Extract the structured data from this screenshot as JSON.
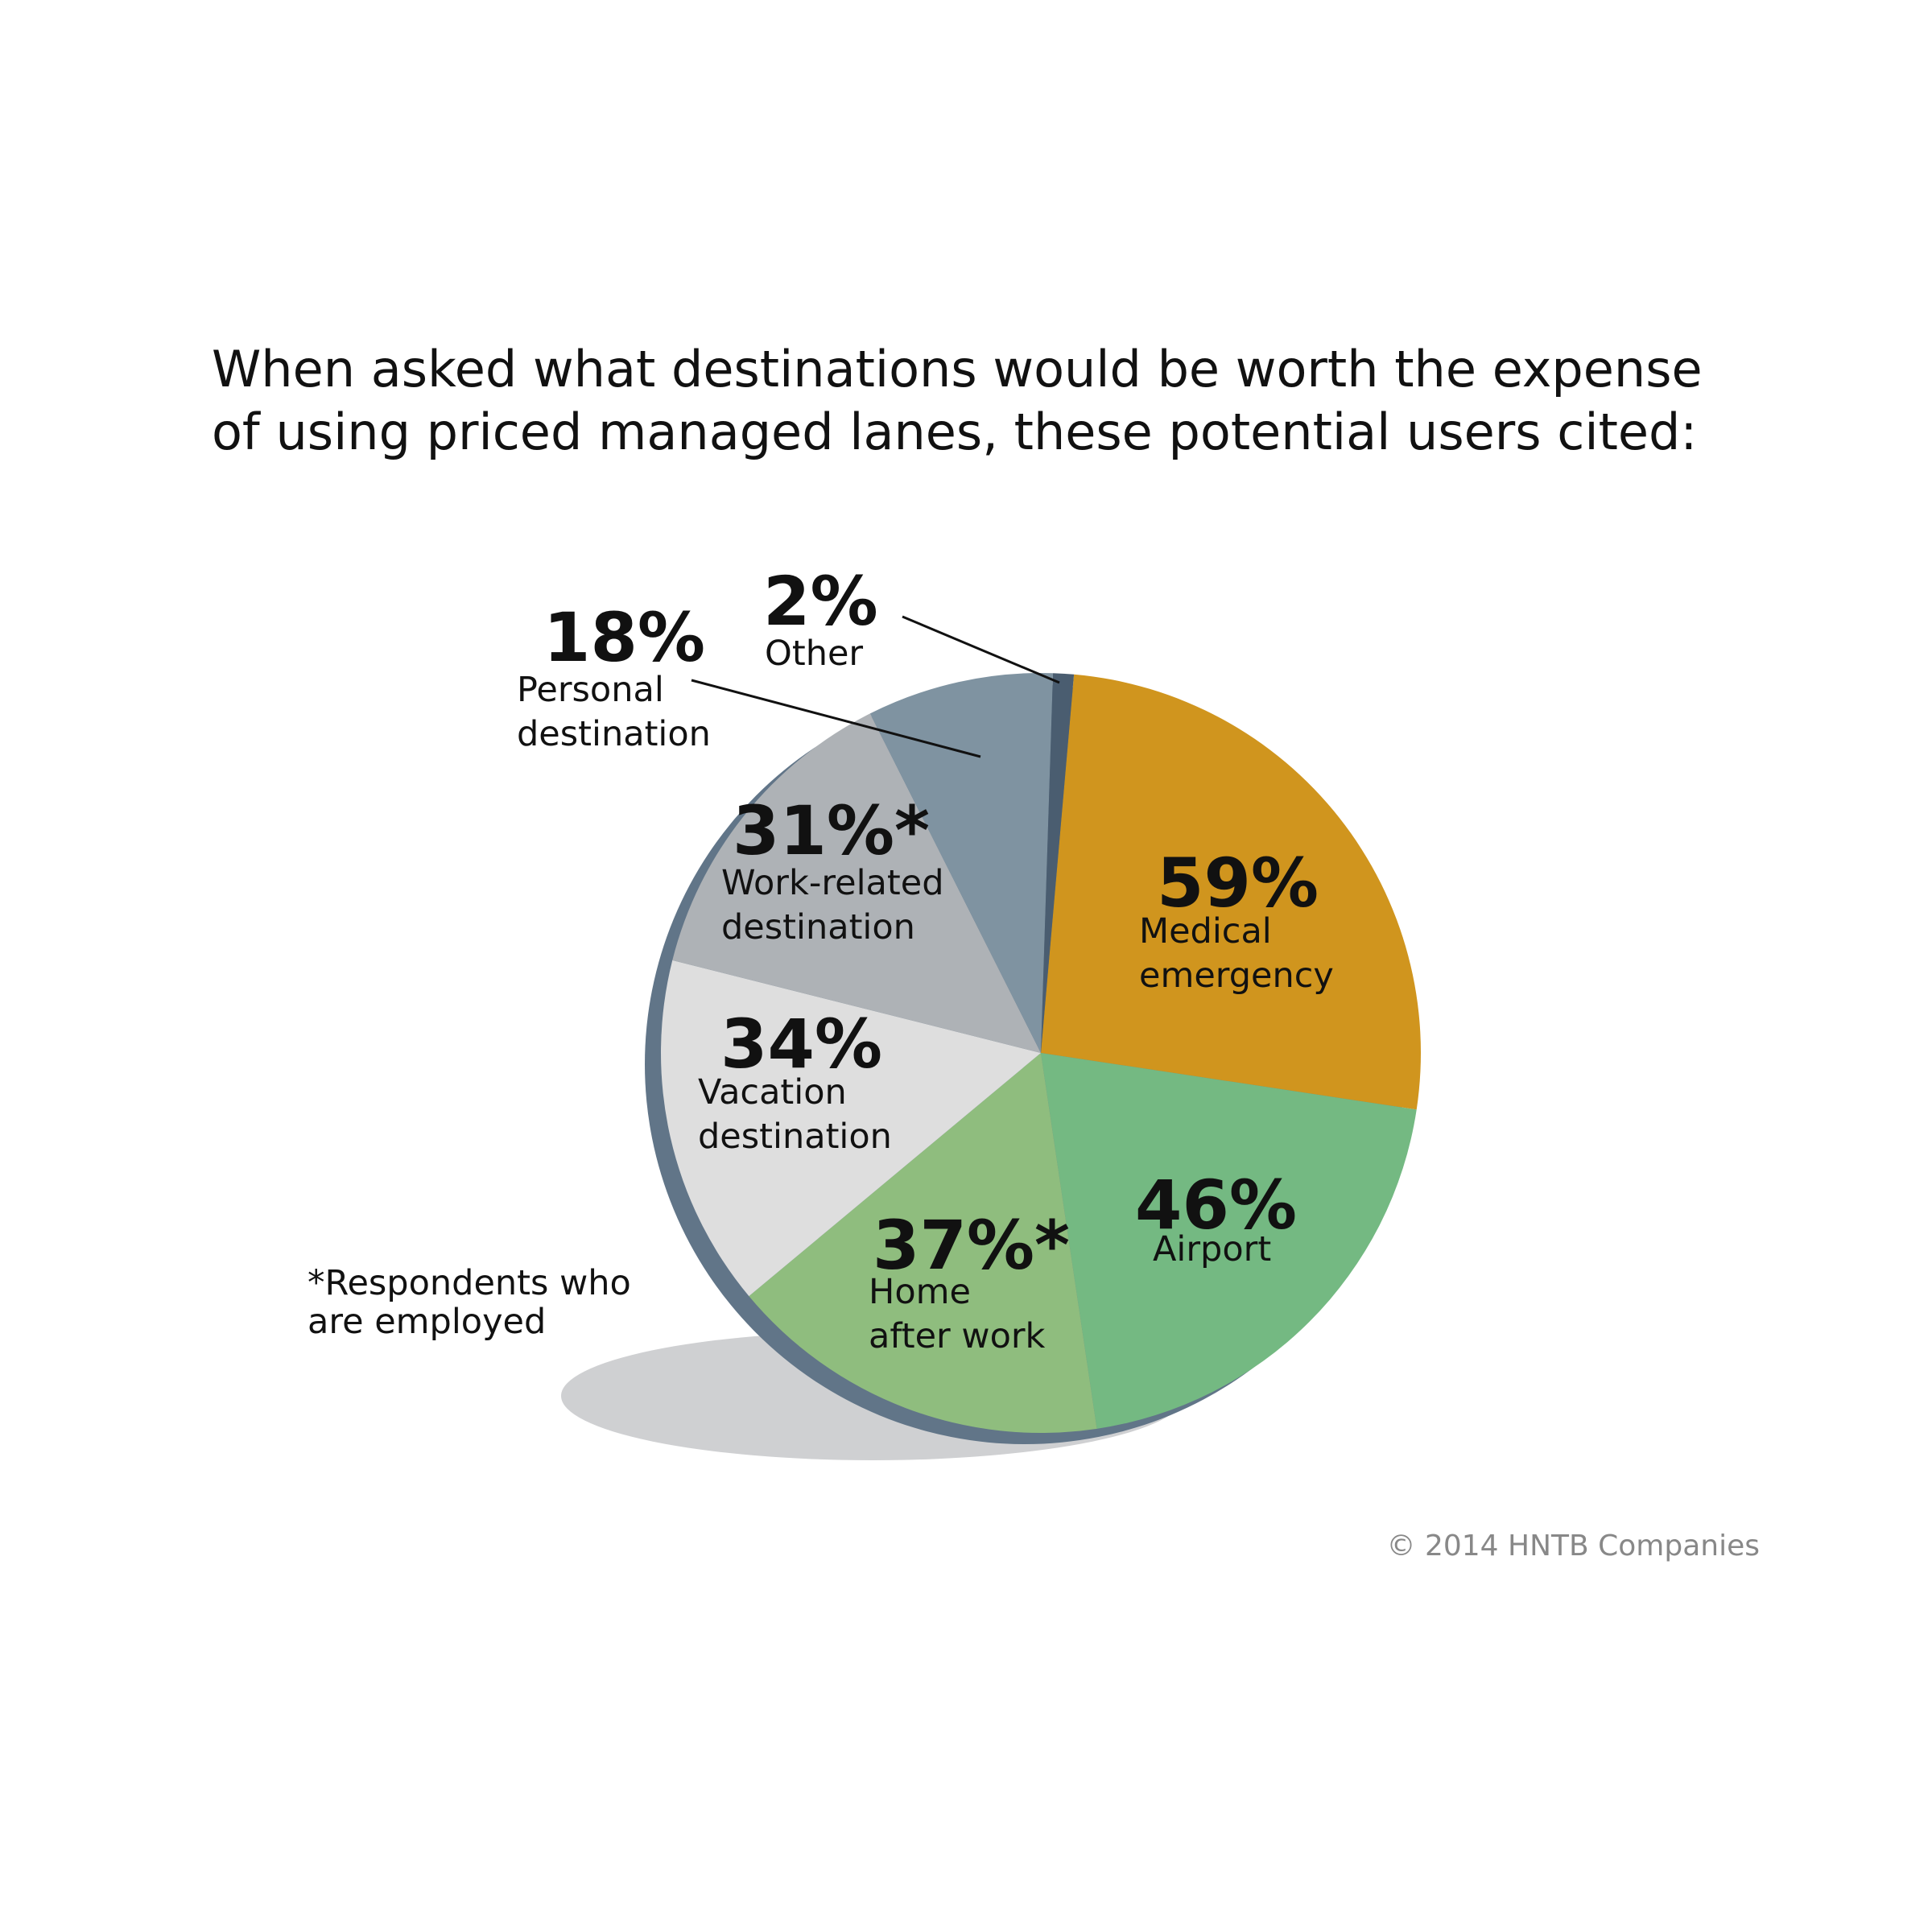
{
  "chart_data": {
    "type": "pie",
    "title": "When asked what destinations would be worth the expense\nof using priced managed lanes, these potential users cited:",
    "categories": [
      "Medical\nemergency",
      "Airport",
      "Home\nafter work",
      "Vacation\ndestination",
      "Work-related\ndestination",
      "Personal\ndestination",
      "Other"
    ],
    "values": [
      59,
      46,
      37,
      34,
      31,
      18,
      2
    ],
    "value_labels": [
      "59%",
      "46%",
      "37%*",
      "34%",
      "31%*",
      "18%",
      "2%"
    ],
    "colors": [
      "#d0951e",
      "#74b982",
      "#8fbd7e",
      "#dedede",
      "#aeb2b6",
      "#7f93a1",
      "#4a5d70"
    ],
    "footnote": "*Respondents who\nare employed",
    "source": "© 2014 HNTB Companies"
  }
}
